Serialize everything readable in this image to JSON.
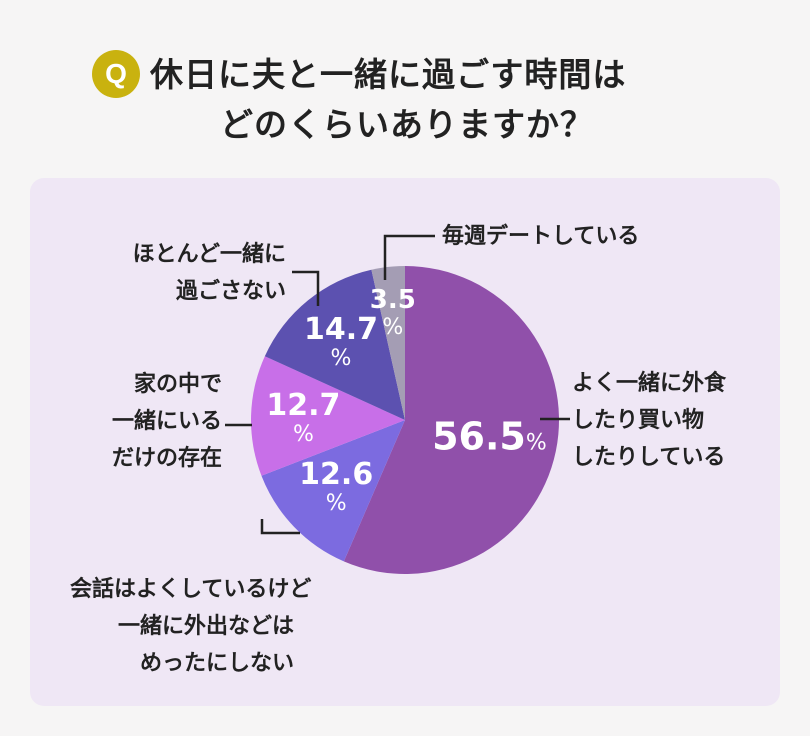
{
  "header": {
    "badge": "Q",
    "title_line1": "休日に夫と一緒に過ごす時間は",
    "title_line2": "どのくらいありますか？"
  },
  "colors": {
    "background": "#f6f5f5",
    "panel": "#efe7f5",
    "badge": "#c9b20f"
  },
  "chart_data": {
    "type": "pie",
    "unit": "%",
    "start_angle_deg": 0,
    "direction": "clockwise",
    "slices": [
      {
        "label_lines": [
          "よく一緒に外食",
          "したり買い物",
          "したりしている"
        ],
        "value": 56.5,
        "value_text": "56.5",
        "color": "#9050aa"
      },
      {
        "label_lines": [
          "会話はよくしているけど",
          "一緒に外出などは",
          "めったにしない"
        ],
        "value": 12.6,
        "value_text": "12.6",
        "color": "#7c6be0"
      },
      {
        "label_lines": [
          "家の中で",
          "一緒にいる",
          "だけの存在"
        ],
        "value": 12.7,
        "value_text": "12.7",
        "color": "#c86fe8"
      },
      {
        "label_lines": [
          "ほとんど一緒に",
          "過ごさない"
        ],
        "value": 14.7,
        "value_text": "14.7",
        "color": "#5c51b0"
      },
      {
        "label_lines": [
          "毎週デートしている"
        ],
        "value": 3.5,
        "value_text": "3.5",
        "color": "#a49db4"
      }
    ]
  }
}
